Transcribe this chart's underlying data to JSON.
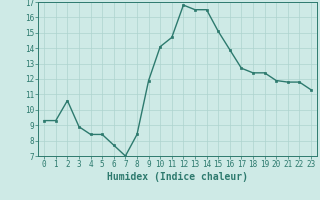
{
  "x": [
    0,
    1,
    2,
    3,
    4,
    5,
    6,
    7,
    8,
    9,
    10,
    11,
    12,
    13,
    14,
    15,
    16,
    17,
    18,
    19,
    20,
    21,
    22,
    23
  ],
  "y": [
    9.3,
    9.3,
    10.6,
    8.9,
    8.4,
    8.4,
    7.7,
    7.0,
    8.4,
    11.9,
    14.1,
    14.7,
    16.8,
    16.5,
    16.5,
    15.1,
    13.9,
    12.7,
    12.4,
    12.4,
    11.9,
    11.8,
    11.8,
    11.3
  ],
  "xlim": [
    -0.5,
    23.5
  ],
  "ylim": [
    7,
    17
  ],
  "yticks": [
    7,
    8,
    9,
    10,
    11,
    12,
    13,
    14,
    15,
    16,
    17
  ],
  "xticks": [
    0,
    1,
    2,
    3,
    4,
    5,
    6,
    7,
    8,
    9,
    10,
    11,
    12,
    13,
    14,
    15,
    16,
    17,
    18,
    19,
    20,
    21,
    22,
    23
  ],
  "xlabel": "Humidex (Indice chaleur)",
  "line_color": "#2d7a6e",
  "marker": "s",
  "marker_size": 2.0,
  "bg_color": "#ceeae6",
  "grid_color": "#aed4cf",
  "tick_fontsize": 5.5,
  "xlabel_fontsize": 7.0,
  "linewidth": 1.0
}
